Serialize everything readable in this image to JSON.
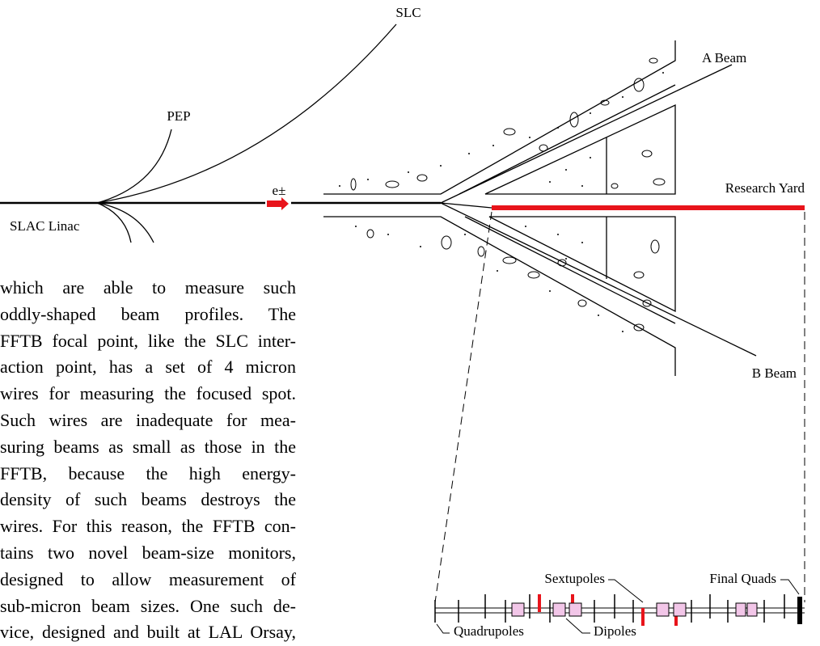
{
  "diagram": {
    "labels": {
      "slc": "SLC",
      "pep": "PEP",
      "a_beam": "A Beam",
      "e_beam": "e±",
      "research_yard": "Research Yard",
      "slac_linac": "SLAC Linac",
      "b_beam": "B Beam",
      "sextupoles": "Sextupoles",
      "final_quads": "Final Quads",
      "quadrupoles": "Quadrupoles",
      "dipoles": "Dipoles"
    }
  },
  "paragraph": {
    "lines": [
      "which are able to measure such",
      "oddly-shaped beam profiles. The",
      "FFTB focal point, like the SLC inter-",
      "action point, has a set of 4 micron",
      "wires for measuring the focused spot.",
      "Such wires are inadequate for mea-",
      "suring beams as small as those in the",
      "FFTB, because the high energy-",
      "density of such beams destroys the",
      "wires. For this reason, the FFTB con-",
      "tains two novel beam-size monitors,",
      "designed to allow measurement of",
      "sub-micron beam sizes. One such de-",
      "vice, designed and built at LAL Orsay,"
    ]
  }
}
